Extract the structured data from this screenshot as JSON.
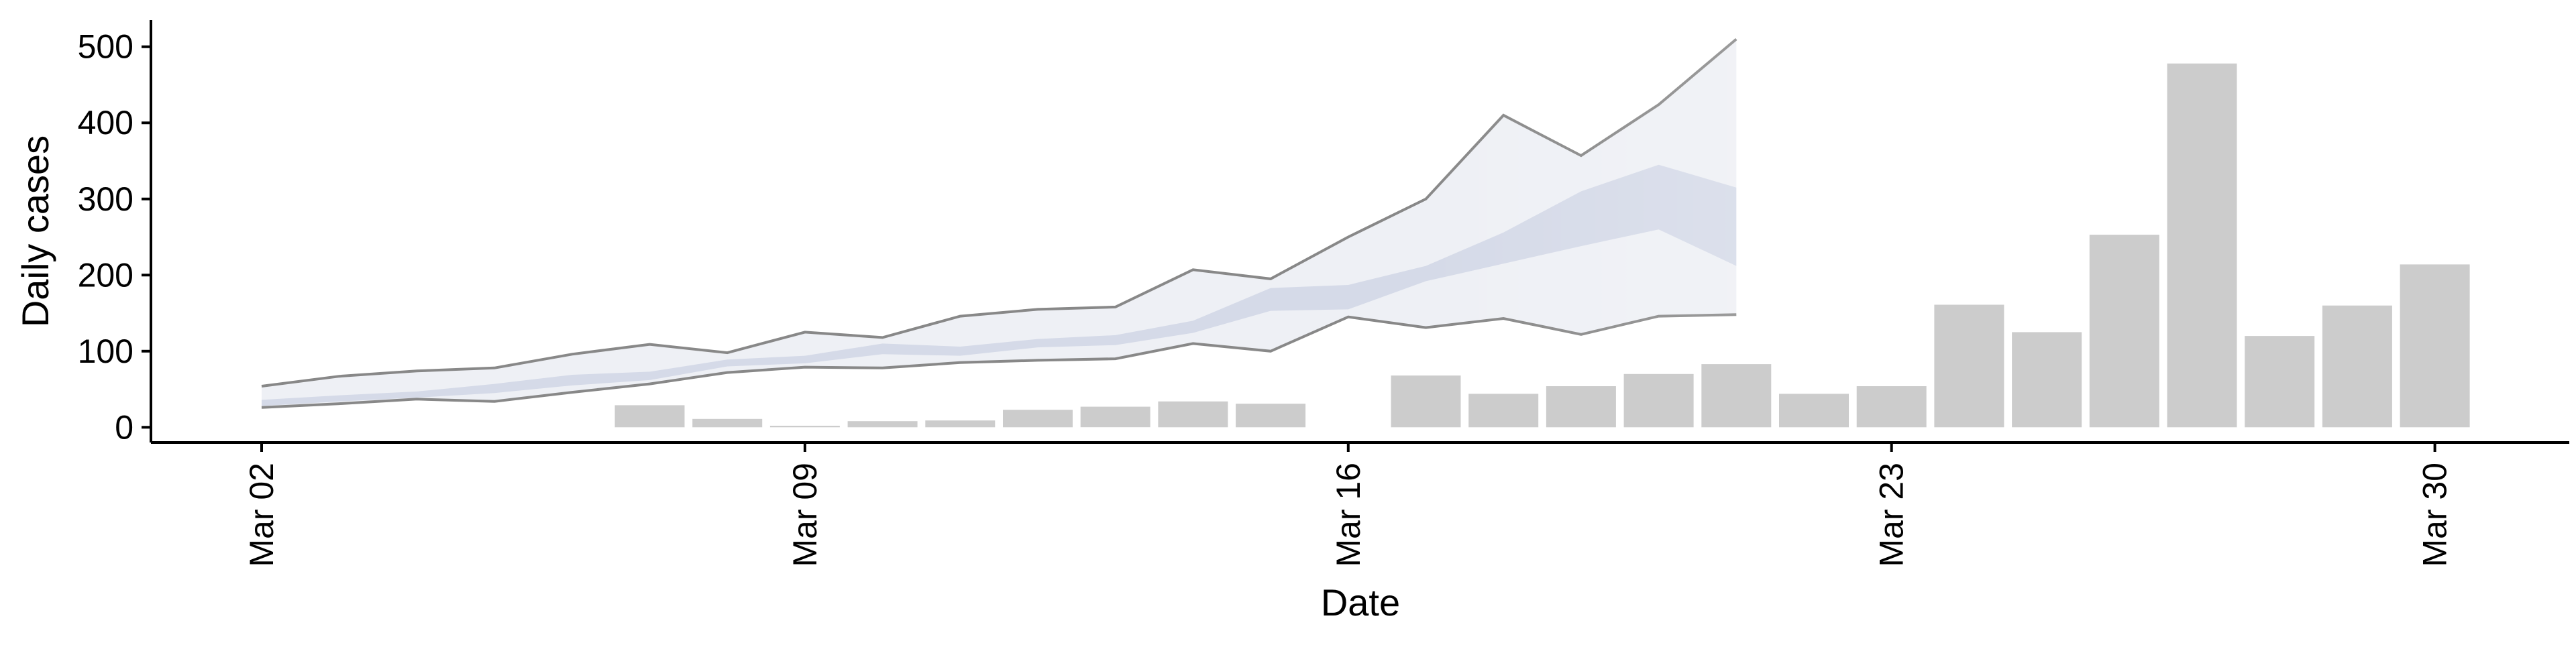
{
  "chart_data": {
    "type": "bar",
    "xlabel": "Date",
    "ylabel": "Daily cases",
    "ylim": [
      -20,
      535
    ],
    "yticks": [
      0,
      100,
      200,
      300,
      400,
      500
    ],
    "x_axis": {
      "type": "date",
      "range": [
        "2020-02-28",
        "2020-04-01"
      ],
      "ticks": [
        {
          "date": "2020-03-02",
          "label": "Mar 02"
        },
        {
          "date": "2020-03-09",
          "label": "Mar 09"
        },
        {
          "date": "2020-03-16",
          "label": "Mar 16"
        },
        {
          "date": "2020-03-23",
          "label": "Mar 23"
        },
        {
          "date": "2020-03-30",
          "label": "Mar 30"
        }
      ]
    },
    "grid": false,
    "legend": "none",
    "colors": {
      "bars": "#cccccc",
      "outer_band": "#eef0f5",
      "outer_band_edge": "#888888",
      "inner_band": "#d5dae8",
      "axis": "#000000"
    },
    "bars": [
      {
        "date": "2020-03-07",
        "value": 29
      },
      {
        "date": "2020-03-08",
        "value": 11
      },
      {
        "date": "2020-03-09",
        "value": 2
      },
      {
        "date": "2020-03-10",
        "value": 8
      },
      {
        "date": "2020-03-11",
        "value": 9
      },
      {
        "date": "2020-03-12",
        "value": 23
      },
      {
        "date": "2020-03-13",
        "value": 27
      },
      {
        "date": "2020-03-14",
        "value": 34
      },
      {
        "date": "2020-03-15",
        "value": 31
      },
      {
        "date": "2020-03-17",
        "value": 68
      },
      {
        "date": "2020-03-18",
        "value": 44
      },
      {
        "date": "2020-03-19",
        "value": 54
      },
      {
        "date": "2020-03-20",
        "value": 70
      },
      {
        "date": "2020-03-21",
        "value": 83
      },
      {
        "date": "2020-03-22",
        "value": 44
      },
      {
        "date": "2020-03-23",
        "value": 54
      },
      {
        "date": "2020-03-24",
        "value": 161
      },
      {
        "date": "2020-03-25",
        "value": 125
      },
      {
        "date": "2020-03-26",
        "value": 253
      },
      {
        "date": "2020-03-27",
        "value": 478
      },
      {
        "date": "2020-03-28",
        "value": 120
      },
      {
        "date": "2020-03-29",
        "value": 160
      },
      {
        "date": "2020-03-30",
        "value": 214
      }
    ],
    "bands": {
      "dates": [
        "2020-03-02",
        "2020-03-03",
        "2020-03-04",
        "2020-03-05",
        "2020-03-06",
        "2020-03-07",
        "2020-03-08",
        "2020-03-09",
        "2020-03-10",
        "2020-03-11",
        "2020-03-12",
        "2020-03-13",
        "2020-03-14",
        "2020-03-15",
        "2020-03-16",
        "2020-03-17",
        "2020-03-18",
        "2020-03-19",
        "2020-03-20",
        "2020-03-21"
      ],
      "outer_upper": [
        54,
        67,
        74,
        78,
        96,
        109,
        98,
        125,
        118,
        146,
        155,
        158,
        207,
        195,
        250,
        300,
        410,
        357,
        424,
        510
      ],
      "outer_lower": [
        26,
        31,
        37,
        34,
        46,
        57,
        72,
        79,
        78,
        85,
        88,
        90,
        110,
        100,
        145,
        131,
        143,
        122,
        146,
        148
      ],
      "inner_upper": [
        36,
        42,
        47,
        57,
        69,
        73,
        89,
        94,
        110,
        106,
        116,
        121,
        140,
        183,
        187,
        212,
        256,
        310,
        345,
        315
      ],
      "inner_lower": [
        28,
        34,
        39,
        45,
        55,
        62,
        80,
        84,
        96,
        94,
        105,
        108,
        124,
        153,
        155,
        192,
        215,
        238,
        260,
        212
      ]
    }
  }
}
